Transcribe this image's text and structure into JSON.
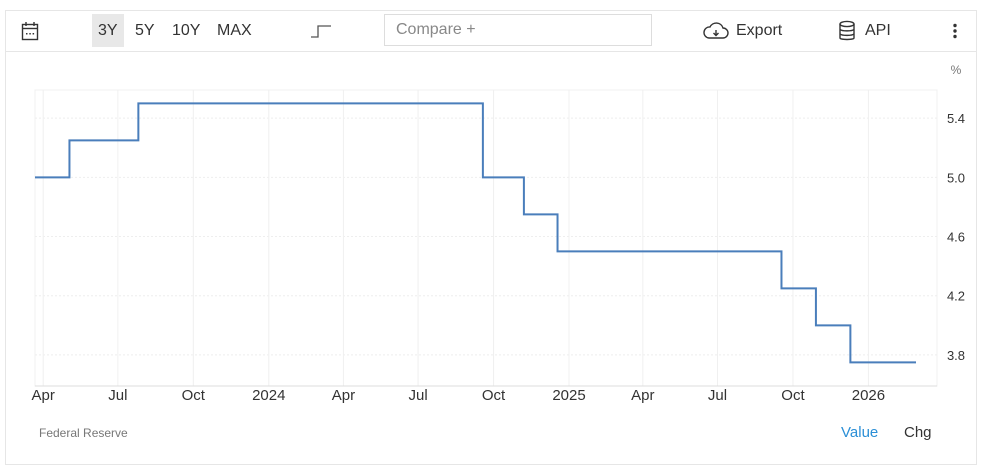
{
  "toolbar": {
    "ranges": [
      "3Y",
      "5Y",
      "10Y",
      "MAX"
    ],
    "active_range": "3Y",
    "compare_placeholder": "Compare +",
    "export_label": "Export",
    "api_label": "API"
  },
  "footer": {
    "source": "Federal Reserve",
    "value_tab": "Value",
    "chg_tab": "Chg"
  },
  "colors": {
    "line": "#4a7ebb",
    "active_tab": "#2b8fd6"
  },
  "chart_data": {
    "type": "line",
    "step": true,
    "unit": "%",
    "xlim": [
      "2023-03-22",
      "2026-02-28"
    ],
    "ylim": [
      3.59,
      5.59
    ],
    "grid": true,
    "yticks": [
      3.8,
      4.2,
      4.6,
      5.0,
      5.4
    ],
    "xticks": [
      {
        "date": "2023-04-01",
        "label": "Apr"
      },
      {
        "date": "2023-07-01",
        "label": "Jul"
      },
      {
        "date": "2023-10-01",
        "label": "Oct"
      },
      {
        "date": "2024-01-01",
        "label": "2024"
      },
      {
        "date": "2024-04-01",
        "label": "Apr"
      },
      {
        "date": "2024-07-01",
        "label": "Jul"
      },
      {
        "date": "2024-10-01",
        "label": "Oct"
      },
      {
        "date": "2025-01-01",
        "label": "2025"
      },
      {
        "date": "2025-04-01",
        "label": "Apr"
      },
      {
        "date": "2025-07-01",
        "label": "Jul"
      },
      {
        "date": "2025-10-01",
        "label": "Oct"
      },
      {
        "date": "2026-01-01",
        "label": "2026"
      }
    ],
    "points": [
      {
        "x": "2023-03-22",
        "y": 5.0
      },
      {
        "x": "2023-05-03",
        "y": 5.25
      },
      {
        "x": "2023-07-26",
        "y": 5.5
      },
      {
        "x": "2024-09-18",
        "y": 5.0
      },
      {
        "x": "2024-11-07",
        "y": 4.75
      },
      {
        "x": "2024-12-18",
        "y": 4.5
      },
      {
        "x": "2025-09-17",
        "y": 4.25
      },
      {
        "x": "2025-10-29",
        "y": 4.0
      },
      {
        "x": "2025-12-10",
        "y": 3.75
      },
      {
        "x": "2026-02-28",
        "y": 3.75
      }
    ]
  }
}
